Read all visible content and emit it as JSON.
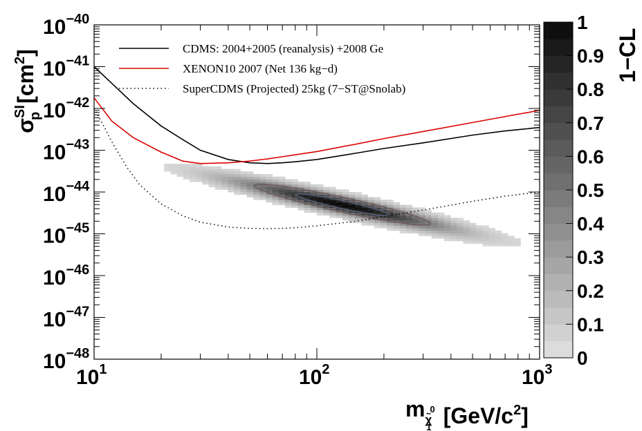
{
  "chart_data": {
    "type": "heatmap",
    "x_scale": "log",
    "y_scale": "log",
    "xlim": [
      10,
      1000
    ],
    "ylim": [
      1e-48,
      1e-40
    ],
    "x_ticks": [
      {
        "value": 10,
        "base": "10",
        "exp": "1"
      },
      {
        "value": 100,
        "base": "10",
        "exp": "2"
      },
      {
        "value": 1000,
        "base": "10",
        "exp": "3"
      }
    ],
    "y_ticks": [
      {
        "value": 1e-48,
        "base": "10",
        "exp": "−48"
      },
      {
        "value": 1e-47,
        "base": "10",
        "exp": "−47"
      },
      {
        "value": 1e-46,
        "base": "10",
        "exp": "−46"
      },
      {
        "value": 1e-45,
        "base": "10",
        "exp": "−45"
      },
      {
        "value": 1e-44,
        "base": "10",
        "exp": "−44"
      },
      {
        "value": 1e-43,
        "base": "10",
        "exp": "−43"
      },
      {
        "value": 1e-42,
        "base": "10",
        "exp": "−42"
      },
      {
        "value": 1e-41,
        "base": "10",
        "exp": "−41"
      },
      {
        "value": 1e-40,
        "base": "10",
        "exp": "−40"
      }
    ],
    "xlabel": {
      "main": "m",
      "sub": "χ̃",
      "subsub": "1",
      "supsub": "0",
      "unit": "[GeV/c",
      "unit_sup": "2",
      "unit_end": "]"
    },
    "ylabel": {
      "main": "σ",
      "sup": "SI",
      "sub": "p",
      "unit": "[cm",
      "unit_sup": "2",
      "unit_end": "]"
    },
    "series": [
      {
        "name": "CDMS: 2004+2005 (reanalysis) +2008 Ge",
        "color": "#000000",
        "style": "solid",
        "x": [
          10,
          12,
          15,
          20,
          25,
          30,
          40,
          50,
          60,
          70,
          80,
          100,
          150,
          200,
          300,
          500,
          700,
          1000
        ],
        "y": [
          1e-41,
          4e-42,
          1.3e-42,
          3.8e-43,
          1.8e-43,
          1e-43,
          6e-44,
          5e-44,
          4.8e-44,
          5e-44,
          5.3e-44,
          6e-44,
          8.5e-44,
          1.1e-43,
          1.5e-43,
          2.3e-43,
          2.9e-43,
          3.5e-43
        ]
      },
      {
        "name": "XENON10 2007 (Net 136 kg−d)",
        "color": "#dd0000",
        "style": "solid",
        "x": [
          10,
          12,
          15,
          20,
          25,
          30,
          40,
          50,
          60,
          70,
          80,
          100,
          150,
          200,
          300,
          500,
          700,
          1000
        ],
        "y": [
          1.8e-42,
          5e-43,
          2e-43,
          9e-44,
          5.5e-44,
          4.8e-44,
          5e-44,
          5.5e-44,
          6.2e-44,
          7e-44,
          7.8e-44,
          9.3e-44,
          1.4e-43,
          1.9e-43,
          2.8e-43,
          4.6e-43,
          6.4e-43,
          9e-43
        ]
      },
      {
        "name": "SuperCDMS (Projected) 25kg (7−ST@Snolab)",
        "color": "#000000",
        "style": "dotted",
        "x": [
          10,
          11,
          12,
          14,
          16,
          20,
          25,
          30,
          40,
          50,
          60,
          70,
          80,
          100,
          150,
          200,
          300,
          500,
          700,
          1000
        ],
        "y": [
          1e-42,
          4e-43,
          1.6e-43,
          4e-44,
          1.5e-44,
          5.2e-45,
          2.7e-45,
          1.9e-45,
          1.45e-45,
          1.35e-45,
          1.33e-45,
          1.35e-45,
          1.4e-45,
          1.55e-45,
          2e-45,
          2.6e-45,
          3.7e-45,
          6e-45,
          8e-45,
          1e-44
        ]
      }
    ],
    "colorbar": {
      "label": "1−CL",
      "min": 0,
      "max": 1,
      "ticks": [
        "0",
        "0.1",
        "0.2",
        "0.3",
        "0.4",
        "0.5",
        "0.6",
        "0.7",
        "0.8",
        "0.9",
        "1"
      ]
    },
    "heatmap_region": {
      "peak_mass": 130,
      "peak_sigma": 5e-45,
      "contours_cl": [
        0.68,
        0.95
      ]
    }
  }
}
